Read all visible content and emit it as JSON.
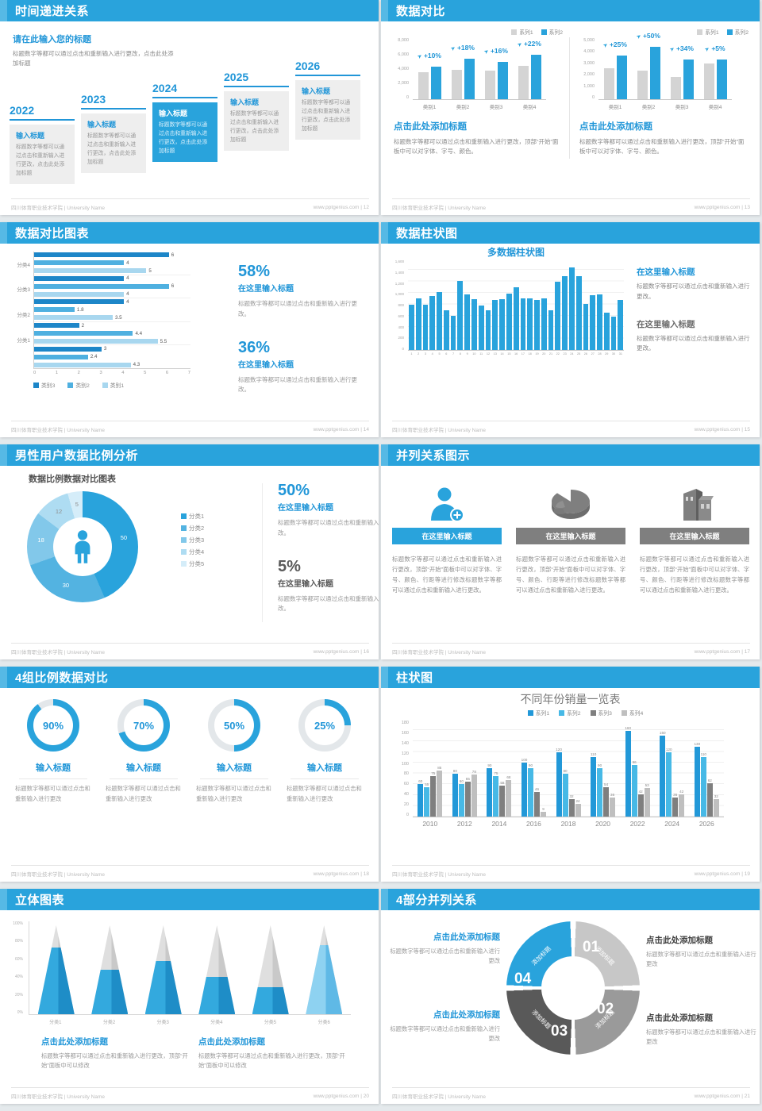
{
  "accent_color": "#29a3dc",
  "footer": {
    "school": "四川体育职业技术学院 | University Name",
    "site": "www.pptgenius.com"
  },
  "slides": {
    "s12": {
      "title": "时间递进关系",
      "page": "12",
      "heading": "请在此输入您的标题",
      "body": "标题数字等都可以通过点击和重新输入进行更改，点击此处添加标题",
      "item_title": "输入标题",
      "item_body": "标题数字等都可以通过点击和重新输入进行更改，点击此处添加标题",
      "years": [
        "2022",
        "2023",
        "2024",
        "2025",
        "2026"
      ],
      "highlight_year": "2024"
    },
    "s13": {
      "title": "数据对比",
      "page": "13",
      "heading": "点击此处添加标题",
      "body": "标题数字等都可以通过点击和重新输入进行更改，顶部“开始”面板中可以对字体、字号、颜色。"
    },
    "s14": {
      "title": "数据对比图表",
      "page": "14",
      "stats": [
        {
          "pct": "58%",
          "heading": "在这里输入标题",
          "body": "标题数字等都可以通过点击和重新输入进行更改。"
        },
        {
          "pct": "36%",
          "heading": "在这里输入标题",
          "body": "标题数字等都可以通过点击和重新输入进行更改。"
        }
      ]
    },
    "s15": {
      "title": "数据柱状图",
      "page": "15",
      "chart_title": "多数据柱状图",
      "blocks": [
        {
          "heading": "在这里输入标题",
          "body": "标题数字等都可以通过点击和重新输入进行更改。"
        },
        {
          "heading": "在这里输入标题",
          "body": "标题数字等都可以通过点击和重新输入进行更改。"
        }
      ]
    },
    "s16": {
      "title": "男性用户数据比例分析",
      "page": "16",
      "chart_title": "数据比例数据对比图表",
      "stats": [
        {
          "pct": "50%",
          "heading": "在这里输入标题",
          "body": "标题数字等都可以通过点击和重新输入进行更改。"
        },
        {
          "pct": "5%",
          "heading": "在这里输入标题",
          "body": "标题数字等都可以通过点击和重新输入进行更改。"
        }
      ]
    },
    "s17": {
      "title": "并列关系图示",
      "page": "17",
      "box_title": "在这里输入标题",
      "box_body": "标题数字等都可以通过点击和重新输入进行更改，顶部“开始”面板中可以对字体、字号、颜色、行距等进行修改标题数字等都可以通过点击和重新输入进行更改。"
    },
    "s18": {
      "title": "4组比例数据对比",
      "page": "18",
      "item_title": "输入标题",
      "item_body": "标题数字等都可以通过点击和重新输入进行更改"
    },
    "s19": {
      "title": "柱状图",
      "page": "19",
      "chart_title": "不同年份销量一览表"
    },
    "s20": {
      "title": "立体图表",
      "page": "20",
      "heading": "点击此处添加标题",
      "body": "标题数字等都可以通过点击和重新输入进行更改，顶部“开始”面板中可以修改"
    },
    "s21": {
      "title": "4部分并列关系",
      "page": "21",
      "heading": "点击此处添加标题",
      "body": "标题数字等都可以通过点击和重新输入进行更改"
    }
  },
  "chart_data": [
    {
      "id": "grouped-bar-a",
      "type": "bar",
      "categories": [
        "类别1",
        "类别2",
        "类别3",
        "类别4"
      ],
      "series": [
        {
          "name": "系列1",
          "color": "#d4d4d4",
          "values": [
            3500,
            3800,
            3700,
            4300
          ]
        },
        {
          "name": "系列2",
          "color": "#29a3dc",
          "values": [
            4200,
            5200,
            4800,
            5700
          ]
        }
      ],
      "pct_labels": [
        "+10%",
        "+18%",
        "+16%",
        "+22%"
      ],
      "ylim": [
        0,
        8000
      ],
      "yticks": [
        "8,000",
        "6,000",
        "4,000",
        "2,000",
        "0"
      ]
    },
    {
      "id": "grouped-bar-b",
      "type": "bar",
      "categories": [
        "类别1",
        "类别2",
        "类别3",
        "类别4"
      ],
      "series": [
        {
          "name": "系列1",
          "color": "#d4d4d4",
          "values": [
            2500,
            2300,
            1800,
            2900
          ]
        },
        {
          "name": "系列2",
          "color": "#29a3dc",
          "values": [
            3500,
            4250,
            3200,
            3200
          ]
        }
      ],
      "pct_labels": [
        "+25%",
        "+50%",
        "+34%",
        "+5%"
      ],
      "ylim": [
        0,
        5000
      ],
      "yticks": [
        "5,000",
        "4,000",
        "3,000",
        "2,000",
        "1,000",
        "0"
      ]
    },
    {
      "id": "hbar",
      "type": "bar-horizontal",
      "groups": [
        "分类4",
        "分类3",
        "分类2",
        "分类1",
        ""
      ],
      "series": [
        {
          "name": "类别3",
          "color": "#1d86c8",
          "values": [
            6,
            4,
            4,
            2,
            3
          ]
        },
        {
          "name": "类别2",
          "color": "#4fb0e0",
          "values": [
            4,
            6,
            1.8,
            4.4,
            2.4
          ]
        },
        {
          "name": "类别1",
          "color": "#a8d7ef",
          "values": [
            5,
            4,
            3.5,
            5.5,
            4.3
          ]
        }
      ],
      "xlim": [
        0,
        7
      ],
      "xticks": [
        "0",
        "1",
        "2",
        "3",
        "4",
        "5",
        "6",
        "7"
      ]
    },
    {
      "id": "multi-bar",
      "type": "bar",
      "title": "多数据柱状图",
      "color": "#29a3dc",
      "x": [
        "1",
        "2",
        "3",
        "4",
        "5",
        "6",
        "7",
        "8",
        "9",
        "10",
        "11",
        "12",
        "13",
        "14",
        "15",
        "16",
        "17",
        "18",
        "19",
        "20",
        "21",
        "22",
        "23",
        "24",
        "25",
        "26",
        "27",
        "28",
        "29",
        "30",
        "31"
      ],
      "values": [
        800,
        900,
        800,
        950,
        1020,
        700,
        600,
        1210,
        980,
        890,
        780,
        700,
        880,
        890,
        990,
        1100,
        900,
        900,
        880,
        900,
        700,
        1200,
        1300,
        1450,
        1300,
        810,
        960,
        970,
        660,
        590,
        870
      ],
      "ylim": [
        0,
        1600
      ],
      "yticks": [
        "1,600",
        "1,400",
        "1,200",
        "1,000",
        "800",
        "600",
        "400",
        "200",
        "0"
      ]
    },
    {
      "id": "donut",
      "type": "pie",
      "title": "数据比例数据对比图表",
      "labels": [
        "分类1",
        "分类2",
        "分类3",
        "分类4",
        "分类5"
      ],
      "values": [
        50,
        30,
        18,
        12,
        5
      ],
      "colors": [
        "#29a3dc",
        "#53b3e1",
        "#82c8ea",
        "#aedcf2",
        "#d5edf9"
      ]
    },
    {
      "id": "gauges",
      "type": "donut-gauge",
      "values": [
        90,
        70,
        50,
        25
      ],
      "color": "#29a3dc",
      "track": "#e3e7ea"
    },
    {
      "id": "year-columns",
      "type": "bar",
      "title": "不同年份销量一览表",
      "categories": [
        "2010",
        "2012",
        "2014",
        "2016",
        "2018",
        "2020",
        "2022",
        "2024",
        "2026"
      ],
      "series": [
        {
          "name": "系列1",
          "color": "#2298d8",
          "values": [
            60,
            80,
            90,
            100,
            120,
            110,
            160,
            150,
            130
          ]
        },
        {
          "name": "系列2",
          "color": "#47b9e6",
          "values": [
            55,
            60,
            75,
            90,
            80,
            90,
            96,
            120,
            110
          ]
        },
        {
          "name": "系列3",
          "color": "#7f7f7f",
          "values": [
            75,
            65,
            58,
            46,
            32,
            54,
            42,
            36,
            62
          ]
        },
        {
          "name": "系列4",
          "color": "#bfbfbf",
          "values": [
            85,
            78,
            68,
            9,
            24,
            36,
            53,
            42,
            32
          ]
        }
      ],
      "ylim": [
        0,
        180
      ],
      "yticks": [
        "180",
        "160",
        "140",
        "120",
        "100",
        "80",
        "60",
        "40",
        "20",
        "0"
      ]
    },
    {
      "id": "cones",
      "type": "cone",
      "categories": [
        "分类1",
        "分类2",
        "分类3",
        "分类4",
        "分类5",
        "分类6"
      ],
      "values": [
        75,
        50,
        60,
        42,
        30,
        78
      ],
      "fills": [
        [
          "#33a9de",
          "#1e8dc7"
        ],
        [
          "#33a9de",
          "#1e8dc7"
        ],
        [
          "#33a9de",
          "#1e8dc7"
        ],
        [
          "#33a9de",
          "#1e8dc7"
        ],
        [
          "#33a9de",
          "#1e8dc7"
        ],
        [
          "#8ed2f1",
          "#5fb9e6"
        ]
      ],
      "yticks": [
        "100%",
        "80%",
        "60%",
        "40%",
        "20%",
        "0%"
      ]
    },
    {
      "id": "cycle4",
      "type": "cycle",
      "segments": [
        {
          "num": "01",
          "label": "添加标题",
          "color": "#c7c7c7"
        },
        {
          "num": "02",
          "label": "添加标题",
          "color": "#9a9a9a"
        },
        {
          "num": "03",
          "label": "添加标题",
          "color": "#595959"
        },
        {
          "num": "04",
          "label": "添加标题",
          "color": "#29a3dc"
        }
      ]
    }
  ]
}
